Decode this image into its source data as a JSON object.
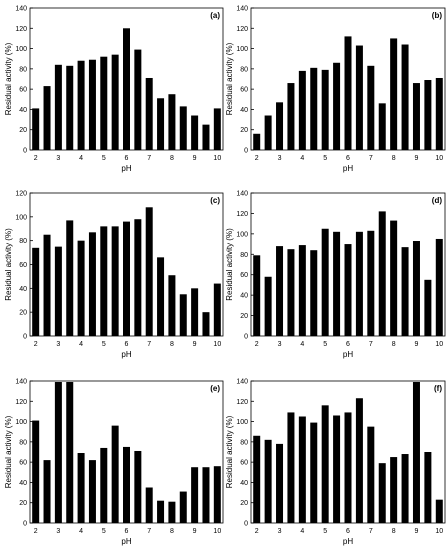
{
  "colors": {
    "bar": "#000000",
    "axis": "#000000",
    "background": "#ffffff"
  },
  "chart_data": [
    {
      "type": "bar",
      "label": "(a)",
      "xlabel": "pH",
      "ylabel": "Residual activity (%)",
      "ylim": [
        0,
        140
      ],
      "yticks": [
        0,
        20,
        40,
        60,
        80,
        100,
        120,
        140
      ],
      "xlim": [
        1.75,
        10.25
      ],
      "xticks": [
        2,
        3,
        4,
        5,
        6,
        7,
        8,
        9,
        10
      ],
      "grid": false,
      "x": [
        2,
        2.5,
        3,
        3.5,
        4,
        4.5,
        5,
        5.5,
        6,
        6.5,
        7,
        7.5,
        8,
        8.5,
        9,
        9.5,
        10
      ],
      "values": [
        41,
        63,
        84,
        83,
        88,
        89,
        92,
        94,
        120,
        99,
        71,
        51,
        55,
        43,
        34,
        25,
        41
      ]
    },
    {
      "type": "bar",
      "label": "(b)",
      "xlabel": "pH",
      "ylabel": "Residual activity (%)",
      "ylim": [
        0,
        140
      ],
      "yticks": [
        0,
        20,
        40,
        60,
        80,
        100,
        120,
        140
      ],
      "xlim": [
        1.75,
        10.25
      ],
      "xticks": [
        2,
        3,
        4,
        5,
        6,
        7,
        8,
        9,
        10
      ],
      "grid": false,
      "x": [
        2,
        2.5,
        3,
        3.5,
        4,
        4.5,
        5,
        5.5,
        6,
        6.5,
        7,
        7.5,
        8,
        8.5,
        9,
        9.5,
        10
      ],
      "values": [
        16,
        34,
        47,
        66,
        78,
        81,
        79,
        86,
        112,
        103,
        83,
        46,
        110,
        104,
        66,
        69,
        71
      ]
    },
    {
      "type": "bar",
      "label": "(c)",
      "xlabel": "pH",
      "ylabel": "Residual activity (%)",
      "ylim": [
        0,
        120
      ],
      "yticks": [
        0,
        20,
        40,
        60,
        80,
        100,
        120
      ],
      "xlim": [
        1.75,
        10.25
      ],
      "xticks": [
        2,
        3,
        4,
        5,
        6,
        7,
        8,
        9,
        10
      ],
      "grid": false,
      "x": [
        2,
        2.5,
        3,
        3.5,
        4,
        4.5,
        5,
        5.5,
        6,
        6.5,
        7,
        7.5,
        8,
        8.5,
        9,
        9.5,
        10
      ],
      "values": [
        74,
        85,
        75,
        97,
        80,
        87,
        92,
        92,
        96,
        98,
        108,
        66,
        51,
        35,
        40,
        20,
        44
      ]
    },
    {
      "type": "bar",
      "label": "(d)",
      "xlabel": "pH",
      "ylabel": "Residual activity (%)",
      "ylim": [
        0,
        140
      ],
      "yticks": [
        0,
        20,
        40,
        60,
        80,
        100,
        120,
        140
      ],
      "xlim": [
        1.75,
        10.25
      ],
      "xticks": [
        2,
        3,
        4,
        5,
        6,
        7,
        8,
        9,
        10
      ],
      "grid": false,
      "x": [
        2,
        2.5,
        3,
        3.5,
        4,
        4.5,
        5,
        5.5,
        6,
        6.5,
        7,
        7.5,
        8,
        8.5,
        9,
        9.5,
        10
      ],
      "values": [
        79,
        58,
        88,
        85,
        89,
        84,
        105,
        102,
        90,
        102,
        103,
        122,
        113,
        87,
        93,
        55,
        95
      ]
    },
    {
      "type": "bar",
      "label": "(e)",
      "xlabel": "pH",
      "ylabel": "Residual activity (%)",
      "ylim": [
        0,
        140
      ],
      "yticks": [
        0,
        20,
        40,
        60,
        80,
        100,
        120,
        140
      ],
      "xlim": [
        1.75,
        10.25
      ],
      "xticks": [
        2,
        3,
        4,
        5,
        6,
        7,
        8,
        9,
        10
      ],
      "grid": false,
      "x": [
        2,
        2.5,
        3,
        3.5,
        4,
        4.5,
        5,
        5.5,
        6,
        6.5,
        7,
        7.5,
        8,
        8.5,
        9,
        9.5,
        10
      ],
      "values": [
        101,
        62,
        139,
        139,
        69,
        62,
        74,
        96,
        75,
        71,
        35,
        22,
        21,
        31,
        55,
        55,
        56
      ]
    },
    {
      "type": "bar",
      "label": "(f)",
      "xlabel": "pH",
      "ylabel": "Residual activity (%)",
      "ylim": [
        0,
        140
      ],
      "yticks": [
        0,
        20,
        40,
        60,
        80,
        100,
        120,
        140
      ],
      "xlim": [
        1.75,
        10.25
      ],
      "xticks": [
        2,
        3,
        4,
        5,
        6,
        7,
        8,
        9,
        10
      ],
      "grid": false,
      "x": [
        2,
        2.5,
        3,
        3.5,
        4,
        4.5,
        5,
        5.5,
        6,
        6.5,
        7,
        7.5,
        8,
        8.5,
        9,
        9.5,
        10
      ],
      "values": [
        86,
        82,
        78,
        109,
        105,
        99,
        116,
        106,
        109,
        123,
        95,
        59,
        65,
        68,
        139,
        70,
        23
      ]
    }
  ]
}
